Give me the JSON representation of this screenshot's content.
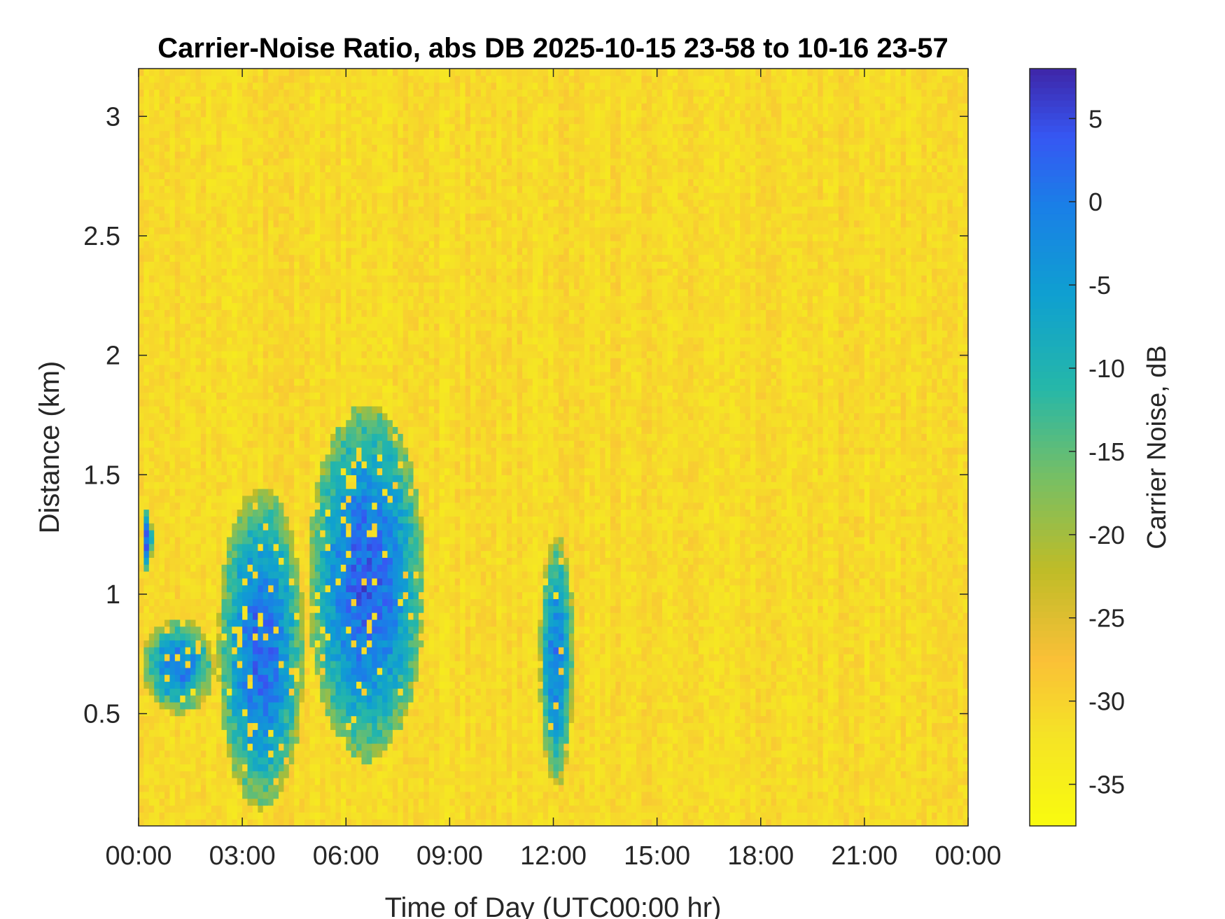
{
  "chart_data": {
    "type": "heatmap",
    "title": "Carrier-Noise Ratio, abs DB 2025-10-15 23-58 to 10-16 23-57",
    "xlabel": "Time of Day (UTC00:00 hr)",
    "ylabel": "Distance (km)",
    "colorbar_label": "Carrier Noise, dB",
    "x_unit": "hours",
    "xlim": [
      0,
      24
    ],
    "ylim": [
      0.03,
      3.2
    ],
    "clim": [
      -37.5,
      8
    ],
    "x_ticks": [
      0,
      3,
      6,
      9,
      12,
      15,
      18,
      21,
      24
    ],
    "x_tick_labels": [
      "00:00",
      "03:00",
      "06:00",
      "09:00",
      "12:00",
      "15:00",
      "18:00",
      "21:00",
      "00:00"
    ],
    "y_ticks": [
      0.5,
      1,
      1.5,
      2,
      2.5,
      3
    ],
    "y_tick_labels": [
      "0.5",
      "1",
      "1.5",
      "2",
      "2.5",
      "3"
    ],
    "colorbar_ticks": [
      5,
      0,
      -5,
      -10,
      -15,
      -20,
      -25,
      -30,
      -35
    ],
    "colorbar_tick_labels": [
      "5",
      "0",
      "-5",
      "-10",
      "-15",
      "-20",
      "-25",
      "-30",
      "-35"
    ],
    "colormap": "parula",
    "background_value_db": -31,
    "grid": false,
    "signal_regions": [
      {
        "name": "early-strip",
        "x_range_hr": [
          0.1,
          0.4
        ],
        "y_range_km": [
          1.1,
          1.35
        ],
        "peak_db": 3
      },
      {
        "name": "low-band",
        "x_range_hr": [
          0.1,
          2.2
        ],
        "y_range_km": [
          0.5,
          0.9
        ],
        "peak_db": 0
      },
      {
        "name": "main-plume-1",
        "x_range_hr": [
          2.3,
          4.8
        ],
        "y_range_km": [
          0.1,
          1.45
        ],
        "peak_db": 2
      },
      {
        "name": "main-plume-2",
        "x_range_hr": [
          4.9,
          8.3
        ],
        "y_range_km": [
          0.3,
          1.8
        ],
        "peak_db": 3
      },
      {
        "name": "noon-plume",
        "x_range_hr": [
          11.6,
          12.6
        ],
        "y_range_km": [
          0.2,
          1.25
        ],
        "peak_db": 0
      }
    ],
    "colors": {
      "background_cell": "#F5B535",
      "colorbar_low": "#F9FB0E",
      "colorbar_high": "#3E26A8"
    }
  }
}
